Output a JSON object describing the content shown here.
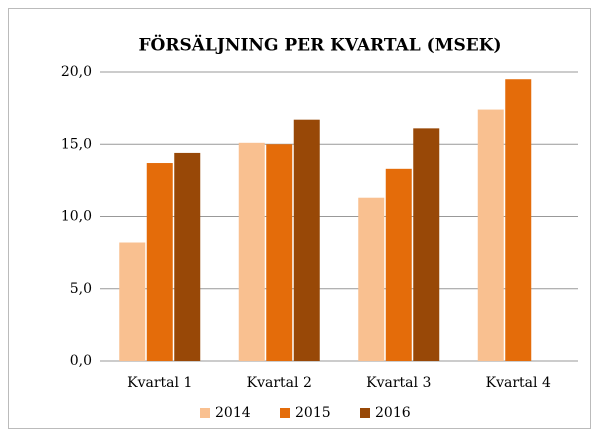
{
  "chart_data": {
    "type": "bar",
    "title": "FÖRSÄLJNING PER KVARTAL (MSEK)",
    "categories": [
      "Kvartal 1",
      "Kvartal 2",
      "Kvartal 3",
      "Kvartal 4"
    ],
    "series": [
      {
        "name": "2014",
        "color": "#f9c090",
        "values": [
          8.2,
          15.1,
          11.3,
          17.4
        ]
      },
      {
        "name": "2015",
        "color": "#e46c0a",
        "values": [
          13.7,
          15.0,
          13.3,
          19.5
        ]
      },
      {
        "name": "2016",
        "color": "#984807",
        "values": [
          14.4,
          16.7,
          16.1,
          null
        ]
      }
    ],
    "ylim": [
      0,
      20
    ],
    "yticks": [
      {
        "value": 0,
        "label": "0,0"
      },
      {
        "value": 5,
        "label": "5,0"
      },
      {
        "value": 10,
        "label": "10,0"
      },
      {
        "value": 15,
        "label": "15,0"
      },
      {
        "value": 20,
        "label": "20,0"
      }
    ],
    "grid": true,
    "legend": "bottom"
  }
}
